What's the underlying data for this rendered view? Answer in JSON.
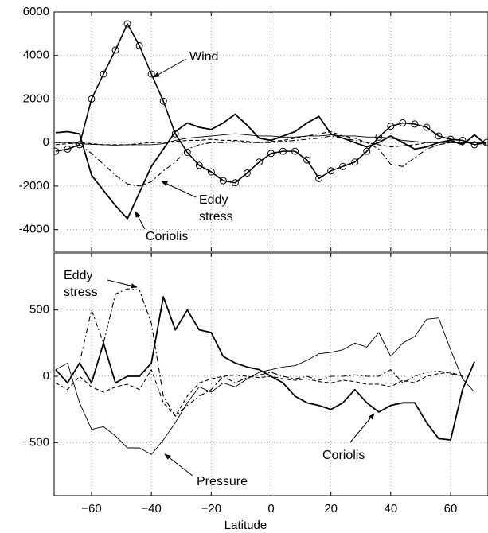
{
  "chart_data": [
    {
      "type": "line",
      "annotations": [
        "Wind",
        "Eddy stress",
        "Coriolis"
      ],
      "x": [
        -72,
        -68,
        -64,
        -60,
        -56,
        -52,
        -48,
        -44,
        -40,
        -36,
        -32,
        -28,
        -24,
        -20,
        -16,
        -12,
        -8,
        -4,
        0,
        4,
        8,
        12,
        16,
        20,
        24,
        28,
        32,
        36,
        40,
        44,
        48,
        52,
        56,
        60,
        64,
        68,
        72
      ],
      "xlim": [
        -72.5,
        72.5
      ],
      "xticks": [
        {
          "value": -60,
          "label": "−60"
        },
        {
          "value": -40,
          "label": "−40"
        },
        {
          "value": -20,
          "label": "−20"
        },
        0,
        20,
        40,
        60
      ],
      "ylim": [
        -5000,
        6000
      ],
      "yticks": [
        -4000,
        -2000,
        0,
        2000,
        4000,
        6000
      ],
      "grid": true,
      "series": [
        {
          "name": "Wind",
          "color": "#000000",
          "style": "circle-line",
          "values": [
            -400,
            -300,
            -100,
            2000,
            3150,
            4250,
            5450,
            4450,
            3150,
            1900,
            400,
            -450,
            -1050,
            -1350,
            -1750,
            -1850,
            -1400,
            -900,
            -500,
            -400,
            -400,
            -800,
            -1650,
            -1300,
            -1100,
            -900,
            -400,
            250,
            750,
            900,
            850,
            700,
            300,
            150,
            100,
            -100,
            0
          ]
        },
        {
          "name": "Coriolis",
          "color": "#000000",
          "style": "thick",
          "values": [
            450,
            500,
            400,
            -1500,
            -2200,
            -2900,
            -3500,
            -2300,
            -1100,
            -300,
            500,
            900,
            700,
            600,
            900,
            1300,
            800,
            200,
            100,
            300,
            500,
            900,
            1200,
            400,
            200,
            0,
            -200,
            0,
            300,
            0,
            -300,
            -200,
            0,
            100,
            -100,
            350,
            -100
          ]
        },
        {
          "name": "Eddy stress",
          "color": "#000000",
          "style": "dash-dot",
          "values": [
            0,
            0,
            -100,
            -500,
            -1000,
            -1500,
            -1900,
            -2000,
            -1800,
            -1300,
            -900,
            -300,
            -100,
            0,
            0,
            50,
            0,
            0,
            0,
            50,
            100,
            150,
            200,
            300,
            200,
            100,
            0,
            -300,
            -1000,
            -1100,
            -700,
            -300,
            -100,
            0,
            0,
            0,
            0
          ]
        },
        {
          "color": "#000000",
          "style": "thin",
          "values": [
            0,
            0,
            -50,
            -80,
            -100,
            -120,
            -100,
            -100,
            -100,
            -50,
            100,
            200,
            250,
            300,
            350,
            400,
            350,
            300,
            300,
            250,
            250,
            300,
            300,
            350,
            300,
            300,
            250,
            250,
            200,
            100,
            50,
            0,
            0,
            0,
            0,
            0,
            0
          ]
        },
        {
          "color": "#000000",
          "style": "dashed",
          "values": [
            -100,
            -50,
            0,
            -50,
            -100,
            -100,
            -100,
            -50,
            0,
            0,
            50,
            100,
            100,
            150,
            100,
            100,
            50,
            0,
            50,
            100,
            200,
            300,
            400,
            500,
            300,
            200,
            0,
            -100,
            -200,
            -150,
            -100,
            0,
            0,
            0,
            0,
            0,
            0
          ]
        }
      ]
    },
    {
      "type": "line",
      "annotations": [
        "Eddy stress",
        "Pressure",
        "Coriolis"
      ],
      "xlabel": "Latitude",
      "x": [
        -72,
        -68,
        -64,
        -60,
        -56,
        -52,
        -48,
        -44,
        -40,
        -36,
        -32,
        -28,
        -24,
        -20,
        -16,
        -12,
        -8,
        -4,
        0,
        4,
        8,
        12,
        16,
        20,
        24,
        28,
        32,
        36,
        40,
        44,
        48,
        52,
        56,
        60,
        64,
        68,
        72
      ],
      "xlim": [
        -72.5,
        72.5
      ],
      "xticks": [
        {
          "value": -60,
          "label": "−60"
        },
        {
          "value": -40,
          "label": "−40"
        },
        {
          "value": -20,
          "label": "−20"
        },
        0,
        20,
        40,
        60
      ],
      "ylim": [
        -900,
        930
      ],
      "yticks": [
        {
          "value": -500,
          "label": "−500"
        },
        0,
        500
      ],
      "grid": true,
      "series": [
        {
          "name": "Coriolis",
          "color": "#000000",
          "style": "thick",
          "values": [
            50,
            -50,
            100,
            -50,
            250,
            -50,
            0,
            0,
            100,
            600,
            350,
            500,
            350,
            330,
            150,
            100,
            70,
            50,
            0,
            -50,
            -150,
            -200,
            -220,
            -250,
            -200,
            -100,
            -200,
            -270,
            -220,
            -200,
            -200,
            -350,
            -470,
            -480,
            -100,
            110,
            null
          ]
        },
        {
          "name": "Pressure",
          "color": "#000000",
          "style": "thin",
          "values": [
            50,
            100,
            -200,
            -400,
            -380,
            -450,
            -540,
            -540,
            -590,
            -480,
            -350,
            -200,
            -80,
            -120,
            -50,
            -80,
            -20,
            30,
            50,
            70,
            80,
            120,
            170,
            180,
            200,
            250,
            220,
            330,
            150,
            250,
            300,
            430,
            440,
            200,
            -20,
            -120,
            null
          ]
        },
        {
          "name": "Eddy stress",
          "color": "#000000",
          "style": "dash-dot",
          "values": [
            50,
            -50,
            100,
            500,
            250,
            620,
            660,
            650,
            400,
            -150,
            -300,
            -220,
            -150,
            -100,
            0,
            -50,
            -10,
            10,
            30,
            0,
            -20,
            0,
            -30,
            0,
            0,
            10,
            0,
            0,
            50,
            -50,
            0,
            30,
            40,
            20,
            0,
            null,
            null
          ]
        },
        {
          "color": "#000000",
          "style": "dashed",
          "values": [
            -50,
            -100,
            0,
            -80,
            -120,
            -80,
            -60,
            -100,
            50,
            -200,
            -300,
            -150,
            -50,
            -20,
            0,
            10,
            0,
            -10,
            0,
            -20,
            -30,
            -20,
            -40,
            -50,
            -30,
            -40,
            -60,
            -60,
            -80,
            -30,
            -50,
            0,
            20,
            30,
            0,
            null,
            null
          ]
        }
      ]
    }
  ]
}
